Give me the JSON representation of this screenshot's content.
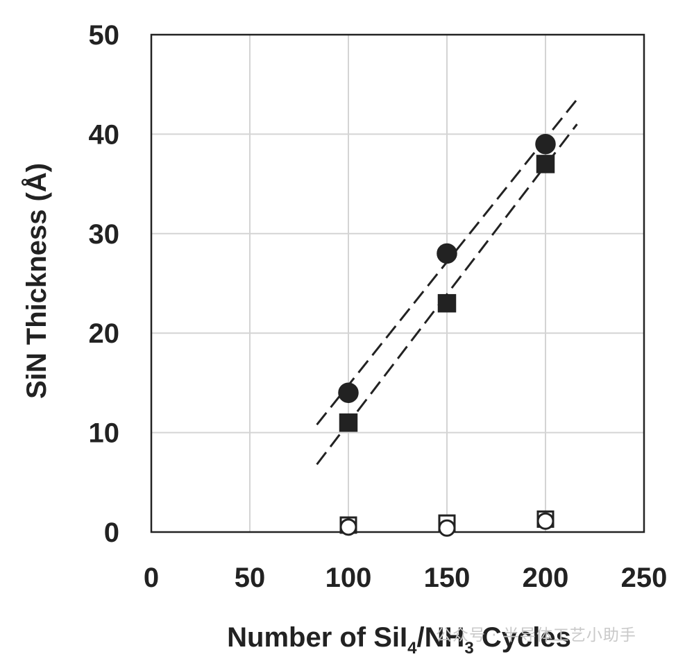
{
  "chart_data": {
    "type": "scatter",
    "title": "",
    "xlabel": {
      "main": "Number of SiI",
      "sub1": "4",
      "mid": "/NH",
      "sub2": "3",
      "tail": " Cycles"
    },
    "ylabel": "SiN Thickness (Å)",
    "xlim": [
      0,
      250
    ],
    "ylim": [
      0,
      50
    ],
    "xticks": [
      "0",
      "50",
      "100",
      "150",
      "200",
      "250"
    ],
    "yticks": [
      "0",
      "10",
      "20",
      "30",
      "40",
      "50"
    ],
    "grid": true,
    "legend": "none",
    "series": [
      {
        "marker": "circle-filled",
        "color": "#222222",
        "points": [
          {
            "x": 100,
            "y": 14
          },
          {
            "x": 150,
            "y": 28
          },
          {
            "x": 200,
            "y": 39
          }
        ]
      },
      {
        "marker": "square-filled",
        "color": "#222222",
        "points": [
          {
            "x": 100,
            "y": 11
          },
          {
            "x": 150,
            "y": 23
          },
          {
            "x": 200,
            "y": 37
          }
        ]
      },
      {
        "marker": "circle-open",
        "color": "#222222",
        "points": [
          {
            "x": 100,
            "y": 0.5
          },
          {
            "x": 150,
            "y": 0.4
          },
          {
            "x": 200,
            "y": 1.1
          }
        ]
      },
      {
        "marker": "square-open",
        "color": "#222222",
        "points": [
          {
            "x": 100,
            "y": 0.7
          },
          {
            "x": 150,
            "y": 0.9
          },
          {
            "x": 200,
            "y": 1.3
          }
        ]
      }
    ],
    "fit_lines": [
      {
        "style": "dashed",
        "from": {
          "x": 84,
          "y": 10.8
        },
        "to": {
          "x": 216,
          "y": 43.5
        }
      },
      {
        "style": "dashed",
        "from": {
          "x": 84,
          "y": 6.8
        },
        "to": {
          "x": 216,
          "y": 41
        }
      }
    ]
  },
  "watermark": "公众号 · 半导体工艺小助手"
}
